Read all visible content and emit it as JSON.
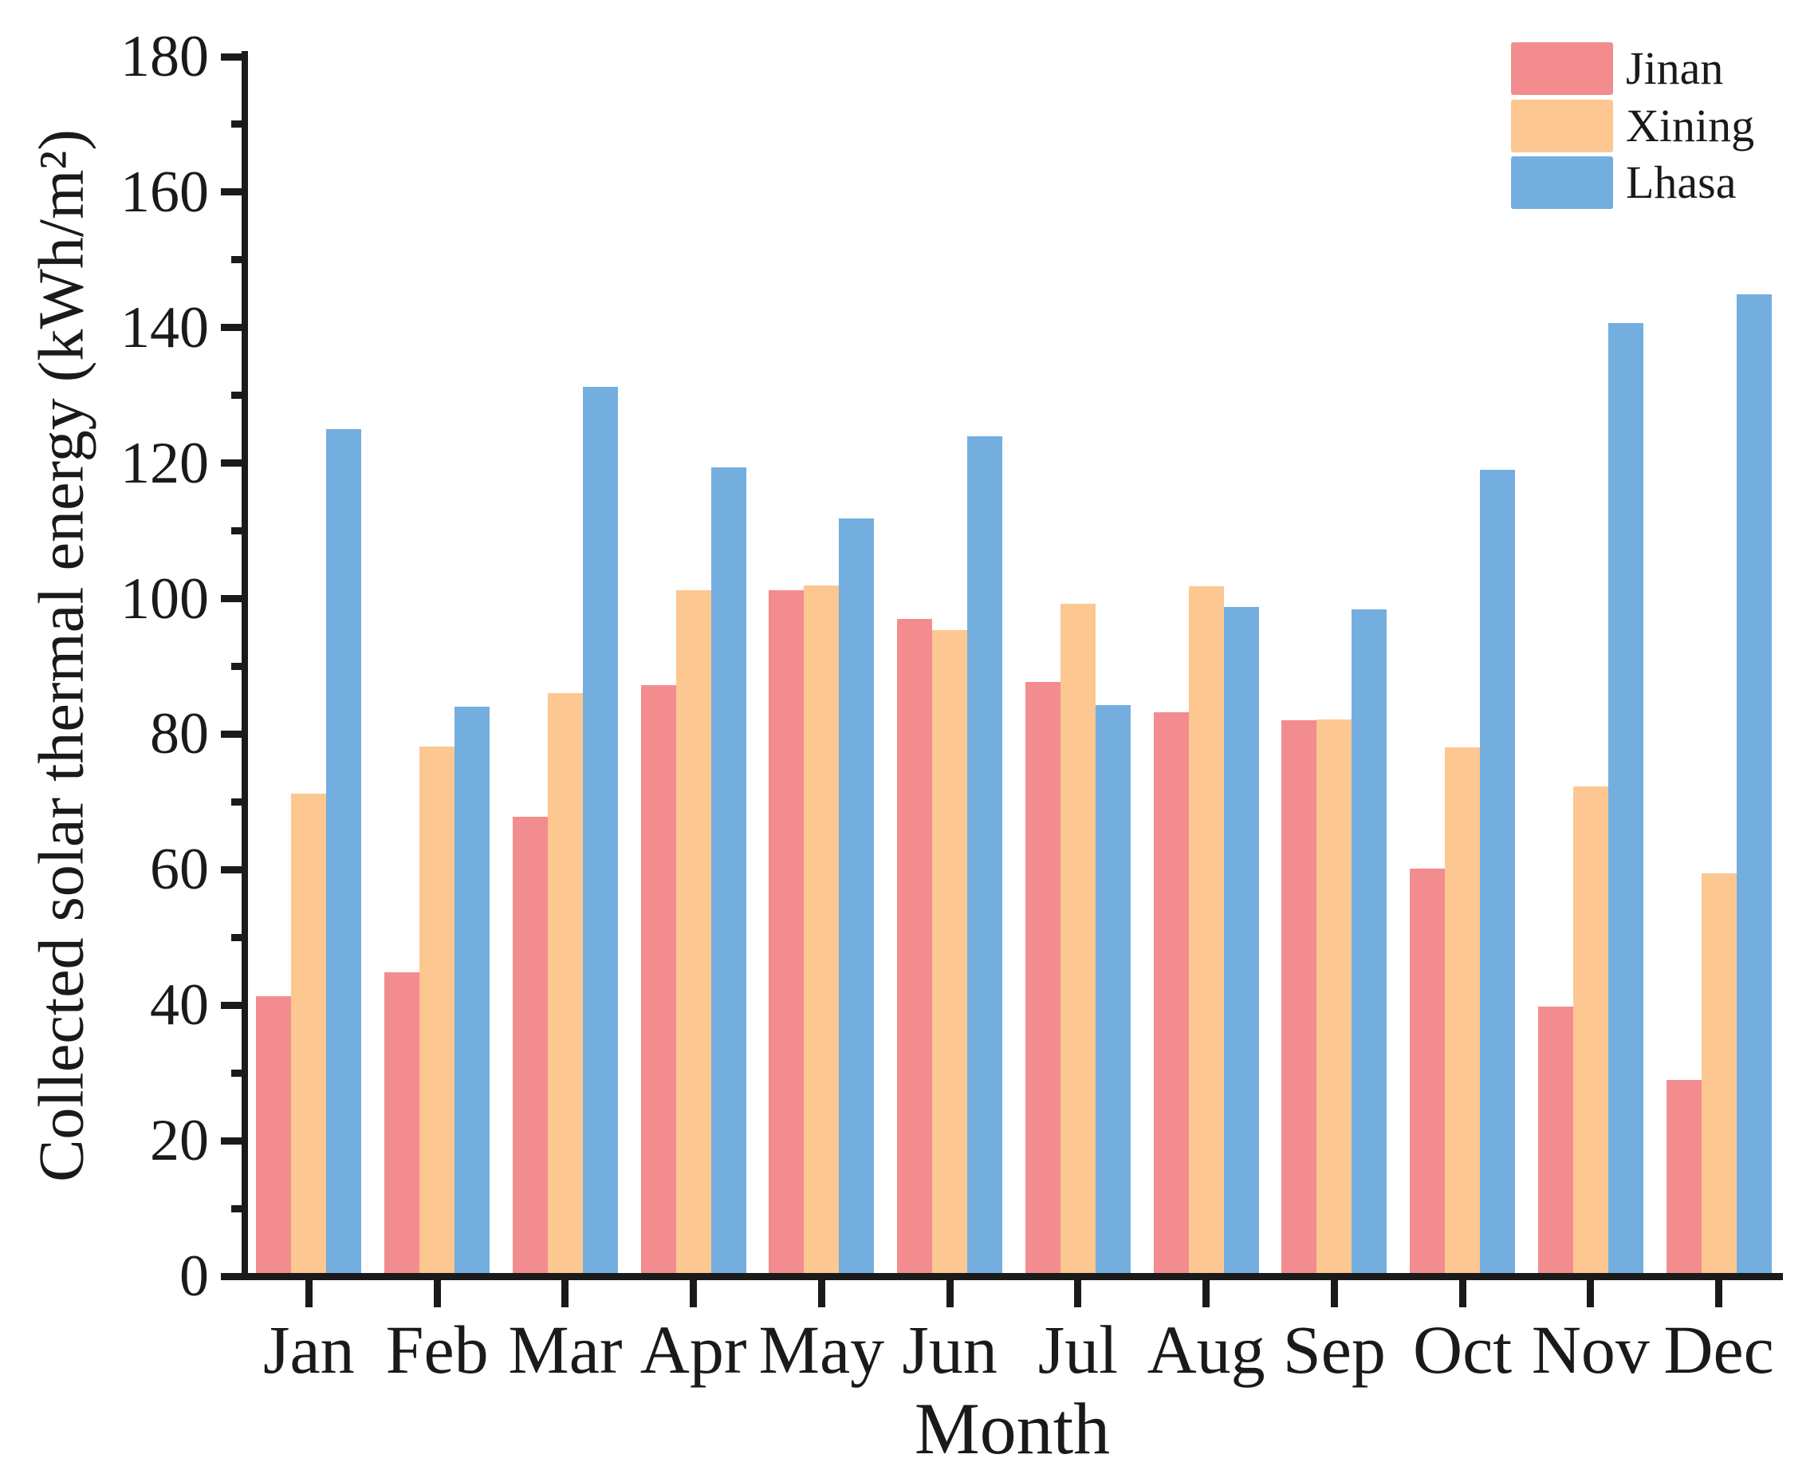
{
  "figure": {
    "xlabel": "Month",
    "ylabel": "Collected solar thermal energy (kWh/m²)"
  },
  "chart_data": {
    "type": "bar",
    "title": "",
    "xlabel": "Month",
    "ylabel": "Collected solar thermal energy (kWh/m²)",
    "categories": [
      "Jan",
      "Feb",
      "Mar",
      "Apr",
      "May",
      "Jun",
      "Jul",
      "Aug",
      "Sep",
      "Oct",
      "Nov",
      "Dec"
    ],
    "series": [
      {
        "name": "Jinan",
        "color": "#F38C8E",
        "values": [
          41.3,
          44.8,
          67.8,
          87.2,
          101.3,
          97.0,
          87.7,
          83.2,
          82.0,
          60.2,
          39.8,
          29.0
        ]
      },
      {
        "name": "Xining",
        "color": "#FCC791",
        "values": [
          71.2,
          78.2,
          86.1,
          101.2,
          102.0,
          95.3,
          99.2,
          101.8,
          82.2,
          78.0,
          72.3,
          59.5
        ]
      },
      {
        "name": "Lhasa",
        "color": "#73AEDF",
        "values": [
          125.0,
          84.0,
          131.3,
          119.4,
          111.8,
          124.0,
          84.3,
          98.8,
          98.4,
          119.0,
          140.7,
          144.9
        ]
      }
    ],
    "ylim": [
      0,
      180
    ],
    "ytick_step": 20,
    "yminor_step": 10,
    "grid": false,
    "legend_position": "top-right",
    "axis_color": "#1a1a1a"
  }
}
